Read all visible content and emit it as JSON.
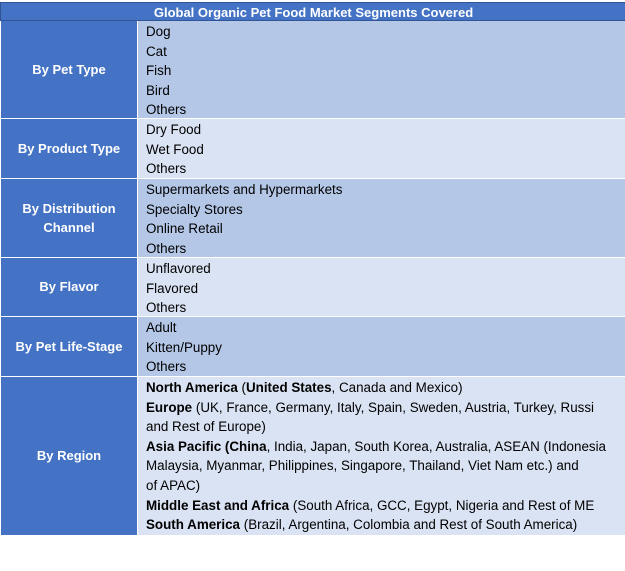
{
  "title": "Global Organic Pet Food Market Segments Covered",
  "segments": [
    {
      "category": "By Pet Type",
      "items": [
        "Dog",
        "Cat",
        "Fish",
        "Bird",
        "Others"
      ]
    },
    {
      "category": "By Product Type",
      "items": [
        "Dry Food",
        "Wet Food",
        "Others"
      ]
    },
    {
      "category": "By Distribution Channel",
      "items": [
        "Supermarkets and Hypermarkets",
        "Specialty Stores",
        "Online Retail",
        "Others"
      ]
    },
    {
      "category": "By Flavor",
      "items": [
        "Unflavored",
        "Flavored",
        "Others"
      ]
    },
    {
      "category": "By Pet Life-Stage",
      "items": [
        "Adult",
        "Kitten/Puppy",
        "Others"
      ]
    },
    {
      "category": "By Region",
      "regions": [
        {
          "lines": [
            [
              "North America",
              " (",
              "United States",
              ", Canada and Mexico)"
            ]
          ]
        },
        {
          "name": "Europe",
          "lines": [
            "(UK, France, Germany, Italy, Spain, Sweden, Austria, Turkey, Russi",
            "and Rest of Europe)"
          ]
        },
        {
          "lines": [
            [
              "Asia Pacific (",
              "China",
              ", India, Japan, South Korea, Australia, ASEAN (Indonesia"
            ],
            "Malaysia, Myanmar, Philippines, Singapore, Thailand, Viet Nam etc.) and",
            "of APAC)"
          ]
        },
        {
          "name": "Middle East and Africa",
          "lines": [
            "(South Africa, GCC, Egypt, Nigeria and Rest of ME"
          ]
        },
        {
          "name": "South America",
          "lines": [
            "(Brazil, Argentina, Colombia and Rest of South America)"
          ]
        }
      ]
    }
  ]
}
